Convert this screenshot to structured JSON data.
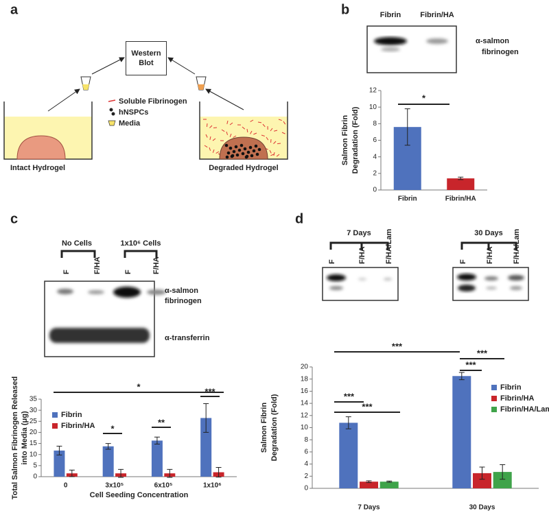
{
  "panel_labels": [
    "a",
    "b",
    "c",
    "d"
  ],
  "diagram": {
    "box": "Western Blot",
    "left_label": "Intact Hydrogel",
    "right_label": "Degraded Hydrogel",
    "legend": [
      "Soluble Fibrinogen",
      "hNSPCs",
      "Media"
    ]
  },
  "blot_b": {
    "lanes": [
      "Fibrin",
      "Fibrin/HA"
    ],
    "antibody": [
      "α-salmon",
      "fibrinogen"
    ]
  },
  "blot_c": {
    "groups": [
      "No Cells",
      "1x10⁶ Cells"
    ],
    "lanes": [
      "F",
      "F/HA",
      "F",
      "F/HA"
    ],
    "antibodies": [
      [
        "α-salmon",
        "fibrinogen"
      ],
      [
        "α-transferrin"
      ]
    ]
  },
  "blot_d": {
    "groups": [
      "7 Days",
      "30 Days"
    ],
    "lanes": [
      "F",
      "F/HA",
      "F/HA/Lam",
      "F",
      "F/HA",
      "F/HA/Lam"
    ]
  },
  "chart_data": [
    {
      "type": "bar",
      "categories": [
        "Fibrin",
        "Fibrin/HA"
      ],
      "series": [
        {
          "values": [
            7.6,
            1.4
          ],
          "errors": [
            2.2,
            0.15
          ],
          "colors": [
            "#4f72bd",
            "#c8252b"
          ]
        }
      ],
      "ylabel": [
        "Salmon Fibrin",
        "Degradation (Fold)"
      ],
      "ylim": [
        0,
        12
      ],
      "yticks": [
        0,
        2,
        4,
        6,
        8,
        10,
        12
      ],
      "annotations": [
        "*"
      ]
    },
    {
      "type": "bar",
      "categories": [
        "0",
        "3x10⁵",
        "6x10⁵",
        "1x10⁶"
      ],
      "series": [
        {
          "name": "Fibrin",
          "color": "#4f72bd",
          "values": [
            11.8,
            13.7,
            16.3,
            26.5
          ],
          "errors": [
            2,
            1.3,
            1.6,
            6.5
          ]
        },
        {
          "name": "Fibrin/HA",
          "color": "#c8252b",
          "values": [
            1.5,
            1.5,
            1.5,
            2
          ],
          "errors": [
            1.5,
            1.8,
            1.8,
            2.2
          ]
        }
      ],
      "ylabel": [
        "Total Salmon Fibrinogen Released",
        "into Media (μg)"
      ],
      "xlabel": "Cell Seeding Concentration",
      "ylim": [
        0,
        35
      ],
      "yticks": [
        0,
        5,
        10,
        15,
        20,
        25,
        30,
        35
      ],
      "legend": "upper left",
      "annotations": [
        "*",
        "*",
        "**",
        "***"
      ]
    },
    {
      "type": "bar",
      "categories": [
        "7 Days",
        "30 Days"
      ],
      "series": [
        {
          "name": "Fibrin",
          "color": "#4f72bd",
          "values": [
            10.8,
            18.5
          ],
          "errors": [
            1,
            0.6
          ]
        },
        {
          "name": "Fibrin/HA",
          "color": "#c8252b",
          "values": [
            1.1,
            2.5
          ],
          "errors": [
            0.15,
            1
          ]
        },
        {
          "name": "Fibrin/HA/Lam",
          "color": "#3fa34a",
          "values": [
            1.1,
            2.7
          ],
          "errors": [
            0.1,
            1.2
          ]
        }
      ],
      "ylabel": [
        "Salmon Fibrin",
        "Degradation (Fold)"
      ],
      "ylim": [
        0,
        20
      ],
      "yticks": [
        0,
        2,
        4,
        6,
        8,
        10,
        12,
        14,
        16,
        18,
        20
      ],
      "legend": "upper right",
      "annotations": [
        "***",
        "***",
        "***",
        "***",
        "***"
      ]
    }
  ]
}
